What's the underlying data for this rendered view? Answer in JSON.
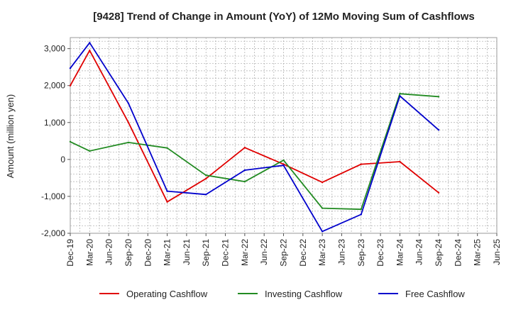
{
  "chart_data": {
    "type": "line",
    "title": "[9428]  Trend of Change in Amount (YoY) of 12Mo Moving Sum of Cashflows",
    "xlabel": "",
    "ylabel": "Amount (million yen)",
    "ylim": [
      -2000,
      3300
    ],
    "yticks": [
      -2000,
      -1000,
      0,
      1000,
      2000,
      3000
    ],
    "ytick_labels": [
      "-2,000",
      "-1,000",
      "0",
      "1,000",
      "2,000",
      "3,000"
    ],
    "categories": [
      "Dec-19",
      "Mar-20",
      "Jun-20",
      "Sep-20",
      "Dec-20",
      "Mar-21",
      "Jun-21",
      "Sep-21",
      "Dec-21",
      "Mar-22",
      "Jun-22",
      "Sep-22",
      "Dec-22",
      "Mar-23",
      "Jun-23",
      "Sep-23",
      "Dec-23",
      "Mar-24",
      "Jun-24",
      "Sep-24",
      "Dec-24",
      "Mar-25"
    ],
    "x_tick_labels": [
      "Dec-19",
      "Mar-20",
      "Jun-20",
      "Sep-20",
      "Dec-20",
      "Mar-21",
      "Jun-21",
      "Sep-21",
      "Dec-21",
      "Mar-22",
      "Jun-22",
      "Sep-22",
      "Dec-22",
      "Mar-23",
      "Jun-23",
      "Sep-23",
      "Dec-23",
      "Mar-24",
      "Jun-24",
      "Sep-24",
      "Dec-24",
      "Mar-25",
      "Jun-25"
    ],
    "grid": true,
    "legend_position": "bottom",
    "series": [
      {
        "name": "Operating Cashflow",
        "color": "#e00000",
        "values": [
          2000,
          2950,
          null,
          1000,
          null,
          -1150,
          null,
          -520,
          null,
          320,
          null,
          -130,
          null,
          -620,
          null,
          -130,
          null,
          -60,
          null,
          -900,
          null,
          null
        ]
      },
      {
        "name": "Investing Cashflow",
        "color": "#228b22",
        "values": [
          480,
          230,
          null,
          460,
          null,
          310,
          null,
          -430,
          null,
          -600,
          null,
          -20,
          null,
          -1320,
          null,
          -1350,
          null,
          1780,
          null,
          1700,
          null,
          null
        ]
      },
      {
        "name": "Free Cashflow",
        "color": "#0000cc",
        "values": [
          2470,
          3160,
          null,
          1520,
          null,
          -860,
          null,
          -950,
          null,
          -290,
          null,
          -160,
          null,
          -1950,
          null,
          -1490,
          null,
          1720,
          null,
          800,
          null,
          null
        ]
      }
    ]
  }
}
